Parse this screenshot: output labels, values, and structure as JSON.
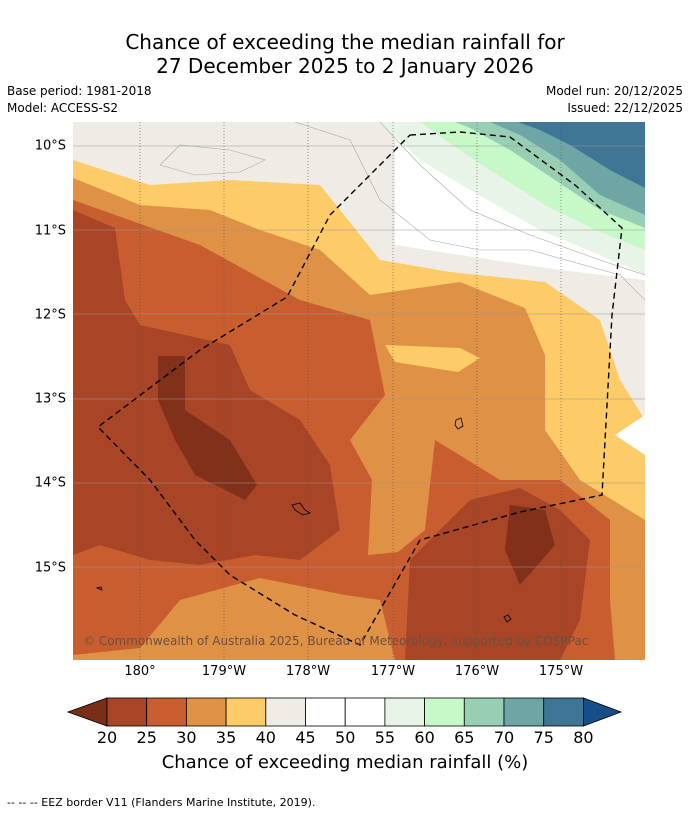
{
  "title": {
    "line1": "Chance of exceeding the median rainfall for",
    "line2": "27 December 2025 to 2 January 2026"
  },
  "meta": {
    "base_period": "Base period: 1981-2018",
    "model": "Model: ACCESS-S2",
    "model_run": "Model run: 20/12/2025",
    "issued": "Issued: 22/12/2025"
  },
  "map": {
    "lat_labels": [
      "10°S",
      "11°S",
      "12°S",
      "13°S",
      "14°S",
      "15°S"
    ],
    "lon_labels": [
      "180°",
      "179°W",
      "178°W",
      "177°W",
      "176°W",
      "175°W"
    ],
    "copyright": "© Commonwealth of Australia 2025, Bureau of Meteorology, supported by COSPPac"
  },
  "colorbar": {
    "ticks": [
      "20",
      "25",
      "30",
      "35",
      "40",
      "45",
      "50",
      "55",
      "60",
      "65",
      "70",
      "75",
      "80"
    ],
    "colors": [
      "#7a2e17",
      "#a84526",
      "#c85e30",
      "#df9146",
      "#fdcb68",
      "#efebe5",
      "#ffffff",
      "#ffffff",
      "#e8f4e7",
      "#c7f8c8",
      "#98cfb4",
      "#6ea6a6",
      "#3f7695",
      "#174d88"
    ],
    "label": "Chance of exceeding median rainfall (%)"
  },
  "footnote": "--  --  -- EEZ border V11 (Flanders Marine Institute, 2019)."
}
